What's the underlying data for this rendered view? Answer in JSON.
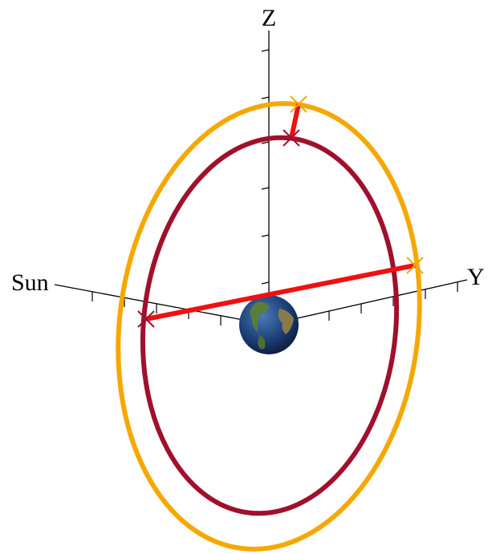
{
  "axes": {
    "z": "Z",
    "sun": "Sun",
    "y": "Y"
  }
}
